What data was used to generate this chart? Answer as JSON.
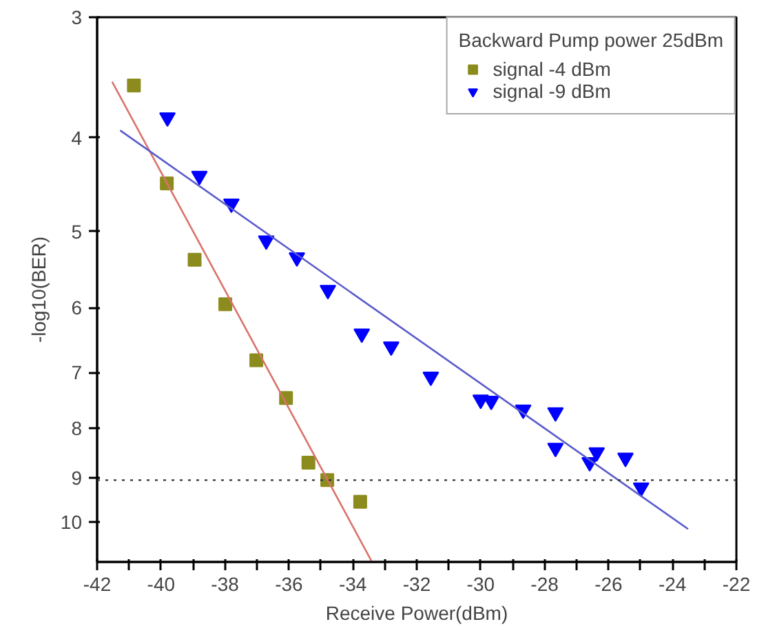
{
  "chart_data": {
    "type": "scatter",
    "xlabel": "Receive Power(dBm)",
    "ylabel": "-log10(BER)",
    "legend_title": "Backward Pump power 25dBm",
    "legend": "top right",
    "grid": false,
    "log": "y",
    "xlim": [
      -42,
      -22
    ],
    "ylim": [
      11,
      3
    ],
    "xticks": [
      -42,
      {
        "value": -41,
        "label": null
      },
      -40,
      {
        "value": -39,
        "label": null
      },
      -38,
      {
        "value": -37,
        "label": null
      },
      -36,
      {
        "value": -35,
        "label": null
      },
      -34,
      {
        "value": -33,
        "label": null
      },
      -32,
      {
        "value": -31,
        "label": null
      },
      -30,
      {
        "value": -29,
        "label": null
      },
      -28,
      {
        "value": -27,
        "label": null
      },
      -26,
      {
        "value": -25,
        "label": null
      },
      -24,
      {
        "value": -23,
        "label": null
      },
      -22
    ],
    "yticks": [
      3,
      4,
      5,
      6,
      7,
      8,
      9,
      10
    ],
    "ref_lines": [
      {
        "axis": "y",
        "value": 9.05,
        "color": "#333333",
        "line_style": "dotted"
      }
    ],
    "series": [
      {
        "name": "signal -4 dBm",
        "marker": "square",
        "color": "#8c8c1e",
        "x": [
          -40.85,
          -39.82,
          -38.95,
          -37.99,
          -37.02,
          -36.09,
          -35.39,
          -34.8,
          -33.77
        ],
        "values": [
          3.53,
          4.46,
          5.35,
          5.95,
          6.8,
          7.44,
          8.68,
          9.05,
          9.53
        ]
      },
      {
        "name": "signal -9 dBm",
        "marker": "triangle",
        "color": "#0000ff",
        "x": [
          -39.8,
          -38.8,
          -37.8,
          -36.71,
          -35.75,
          -34.78,
          -33.72,
          -32.8,
          -31.56,
          -30.0,
          -29.67,
          -28.67,
          -27.66,
          -27.66,
          -26.59,
          -26.37,
          -25.47,
          -24.98
        ],
        "values": [
          3.81,
          4.38,
          4.68,
          5.11,
          5.32,
          5.75,
          6.38,
          6.58,
          7.07,
          7.47,
          7.49,
          7.65,
          7.7,
          8.38,
          8.67,
          8.47,
          8.58,
          9.21
        ]
      },
      {
        "type": "line",
        "color": "#d9736b",
        "x": [
          -41.53,
          -33.4
        ],
        "values": [
          3.5,
          11.0
        ]
      },
      {
        "type": "line",
        "color": "#5a5acd",
        "x": [
          -41.28,
          -23.51
        ],
        "values": [
          3.93,
          10.17
        ]
      }
    ]
  }
}
